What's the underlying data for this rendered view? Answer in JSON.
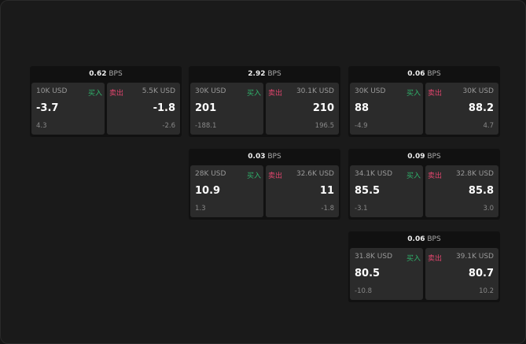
{
  "unit": "BPS",
  "buy_label": "买入",
  "sell_label": "卖出",
  "colors": {
    "buy": "#2fb36b",
    "sell": "#e0456d"
  },
  "cards": [
    {
      "spread": "0.62",
      "buy": {
        "size": "10K USD",
        "price": "-3.7",
        "change": "4.3"
      },
      "sell": {
        "size": "5.5K USD",
        "price": "-1.8",
        "change": "-2.6"
      }
    },
    {
      "spread": "2.92",
      "buy": {
        "size": "30K USD",
        "price": "201",
        "change": "-188.1"
      },
      "sell": {
        "size": "30.1K USD",
        "price": "210",
        "change": "196.5"
      }
    },
    {
      "spread": "0.06",
      "buy": {
        "size": "30K USD",
        "price": "88",
        "change": "-4.9"
      },
      "sell": {
        "size": "30K USD",
        "price": "88.2",
        "change": "4.7"
      }
    },
    {
      "spread": "0.03",
      "buy": {
        "size": "28K USD",
        "price": "10.9",
        "change": "1.3"
      },
      "sell": {
        "size": "32.6K USD",
        "price": "11",
        "change": "-1.8"
      }
    },
    {
      "spread": "0.09",
      "buy": {
        "size": "34.1K USD",
        "price": "85.5",
        "change": "-3.1"
      },
      "sell": {
        "size": "32.8K USD",
        "price": "85.8",
        "change": "3.0"
      }
    },
    {
      "spread": "0.06",
      "buy": {
        "size": "31.8K USD",
        "price": "80.5",
        "change": "-10.8"
      },
      "sell": {
        "size": "39.1K USD",
        "price": "80.7",
        "change": "10.2"
      }
    }
  ]
}
